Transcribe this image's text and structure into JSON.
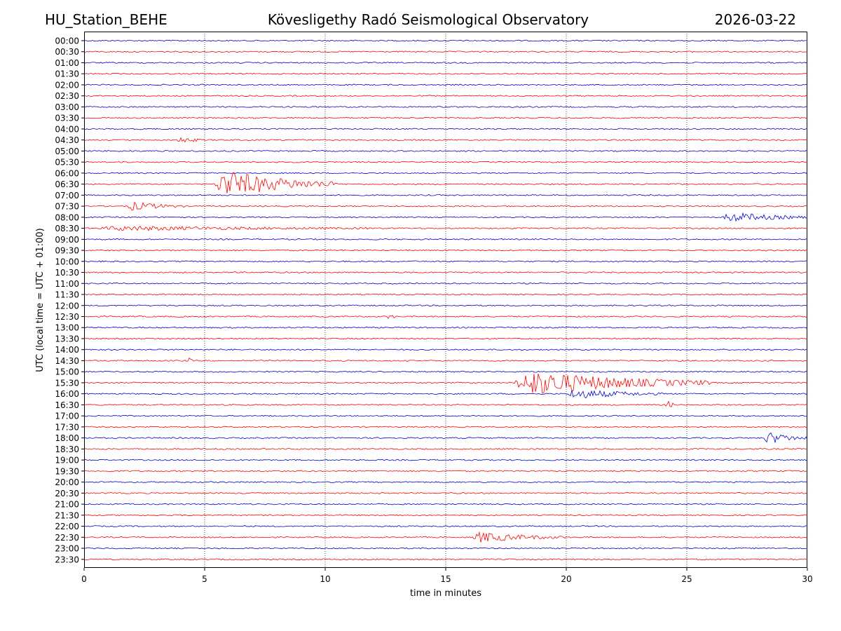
{
  "header": {
    "station": "HU_Station_BEHE",
    "observatory": "Kövesligethy Radó Seismological Observatory",
    "date": "2026-03-22"
  },
  "chart_data": {
    "type": "line",
    "title": "Kövesligethy Radó Seismological Observatory",
    "xlabel": "time in minutes",
    "ylabel": "UTC (local time = UTC + 01:00)",
    "xlim": [
      0,
      30
    ],
    "x_ticks": [
      "0",
      "5",
      "10",
      "15",
      "20",
      "25",
      "30"
    ],
    "x_tick_values": [
      0,
      5,
      10,
      15,
      20,
      25,
      30
    ],
    "vertical_gridlines_at": [
      5,
      10,
      15,
      20,
      25
    ],
    "grid": "vertical dotted",
    "row_labels": [
      "00:00",
      "00:30",
      "01:00",
      "01:30",
      "02:00",
      "02:30",
      "03:00",
      "03:30",
      "04:00",
      "04:30",
      "05:00",
      "05:30",
      "06:00",
      "06:30",
      "07:00",
      "07:30",
      "08:00",
      "08:30",
      "09:00",
      "09:30",
      "10:00",
      "10:30",
      "11:00",
      "11:30",
      "12:00",
      "12:30",
      "13:00",
      "13:30",
      "14:00",
      "14:30",
      "15:00",
      "15:30",
      "16:00",
      "16:30",
      "17:00",
      "17:30",
      "18:00",
      "18:30",
      "19:00",
      "19:30",
      "20:00",
      "20:30",
      "21:00",
      "21:30",
      "22:00",
      "22:30",
      "23:00",
      "23:30"
    ],
    "trace_colors": [
      "#0000cc",
      "#ff0000"
    ],
    "events": [
      {
        "row": "04:30",
        "start": 3.8,
        "end": 5.0,
        "amp": 0.2
      },
      {
        "row": "06:30",
        "start": 5.4,
        "end": 10.5,
        "amp": 1.0
      },
      {
        "row": "07:30",
        "start": 1.8,
        "end": 4.2,
        "amp": 0.3
      },
      {
        "row": "08:00",
        "start": 26.5,
        "end": 30.0,
        "amp": 0.35
      },
      {
        "row": "08:30",
        "start": 0.5,
        "end": 12.0,
        "amp": 0.15
      },
      {
        "row": "12:30",
        "start": 12.5,
        "end": 13.0,
        "amp": 0.2
      },
      {
        "row": "14:30",
        "start": 4.3,
        "end": 4.5,
        "amp": 0.25
      },
      {
        "row": "15:30",
        "start": 17.8,
        "end": 26.0,
        "amp": 0.9
      },
      {
        "row": "16:00",
        "start": 20.0,
        "end": 24.0,
        "amp": 0.35
      },
      {
        "row": "16:30",
        "start": 24.1,
        "end": 24.5,
        "amp": 0.4
      },
      {
        "row": "18:00",
        "start": 28.2,
        "end": 30.0,
        "amp": 0.45
      },
      {
        "row": "22:30",
        "start": 16.1,
        "end": 20.0,
        "amp": 0.35
      }
    ]
  }
}
